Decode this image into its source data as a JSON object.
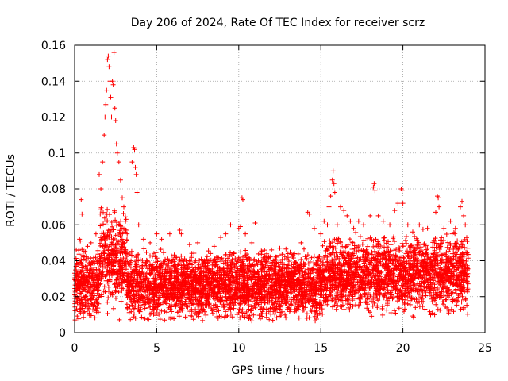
{
  "chart_data": {
    "type": "scatter",
    "title": "Day 206 of 2024, Rate Of TEC Index for receiver scrz",
    "xlabel": "GPS time / hours",
    "ylabel": "ROTI / TECUs",
    "xlim": [
      0,
      25
    ],
    "ylim": [
      0,
      0.16
    ],
    "xticks": [
      0,
      5,
      10,
      15,
      20,
      25
    ],
    "xtick_labels": [
      "0",
      "5",
      "10",
      "15",
      "20",
      "25"
    ],
    "yticks": [
      0,
      0.02,
      0.04,
      0.06,
      0.08,
      0.1,
      0.12,
      0.14,
      0.16
    ],
    "ytick_labels": [
      "0",
      "0.02",
      "0.04",
      "0.06",
      "0.08",
      "0.1",
      "0.12",
      "0.14",
      "0.16"
    ],
    "grid": true,
    "marker": "+",
    "color": "#ff0000",
    "x_extent_hours": [
      0,
      24
    ],
    "baseline_roti_range": [
      0.008,
      0.045
    ],
    "series": [
      {
        "name": "ROTI",
        "points": [
          [
            0.1,
            0.046
          ],
          [
            0.3,
            0.052
          ],
          [
            0.35,
            0.051
          ],
          [
            0.4,
            0.074
          ],
          [
            0.45,
            0.066
          ],
          [
            0.5,
            0.043
          ],
          [
            0.8,
            0.048
          ],
          [
            1.0,
            0.05
          ],
          [
            1.3,
            0.055
          ],
          [
            1.5,
            0.088
          ],
          [
            1.6,
            0.08
          ],
          [
            1.7,
            0.095
          ],
          [
            1.8,
            0.11
          ],
          [
            1.85,
            0.12
          ],
          [
            1.9,
            0.127
          ],
          [
            1.95,
            0.135
          ],
          [
            2.0,
            0.152
          ],
          [
            2.05,
            0.154
          ],
          [
            2.1,
            0.148
          ],
          [
            2.15,
            0.14
          ],
          [
            2.2,
            0.131
          ],
          [
            2.25,
            0.12
          ],
          [
            2.3,
            0.14
          ],
          [
            2.35,
            0.138
          ],
          [
            2.4,
            0.156
          ],
          [
            2.45,
            0.125
          ],
          [
            2.5,
            0.118
          ],
          [
            2.55,
            0.105
          ],
          [
            2.6,
            0.1
          ],
          [
            2.7,
            0.095
          ],
          [
            2.8,
            0.085
          ],
          [
            2.9,
            0.075
          ],
          [
            3.0,
            0.07
          ],
          [
            3.1,
            0.062
          ],
          [
            3.2,
            0.055
          ],
          [
            3.5,
            0.095
          ],
          [
            3.6,
            0.103
          ],
          [
            3.65,
            0.102
          ],
          [
            3.7,
            0.092
          ],
          [
            3.75,
            0.088
          ],
          [
            3.8,
            0.078
          ],
          [
            3.9,
            0.06
          ],
          [
            4.2,
            0.052
          ],
          [
            4.6,
            0.05
          ],
          [
            5.0,
            0.055
          ],
          [
            5.3,
            0.052
          ],
          [
            5.8,
            0.055
          ],
          [
            6.4,
            0.057
          ],
          [
            6.5,
            0.055
          ],
          [
            7.0,
            0.049
          ],
          [
            7.5,
            0.05
          ],
          [
            8.5,
            0.048
          ],
          [
            8.9,
            0.053
          ],
          [
            9.2,
            0.055
          ],
          [
            9.5,
            0.06
          ],
          [
            10.0,
            0.058
          ],
          [
            10.1,
            0.059
          ],
          [
            10.2,
            0.075
          ],
          [
            10.25,
            0.074
          ],
          [
            10.4,
            0.055
          ],
          [
            10.8,
            0.05
          ],
          [
            11.0,
            0.061
          ],
          [
            11.4,
            0.045
          ],
          [
            12.0,
            0.046
          ],
          [
            12.5,
            0.047
          ],
          [
            13.0,
            0.044
          ],
          [
            13.4,
            0.044
          ],
          [
            13.8,
            0.05
          ],
          [
            14.2,
            0.067
          ],
          [
            14.3,
            0.066
          ],
          [
            14.6,
            0.058
          ],
          [
            15.0,
            0.055
          ],
          [
            15.2,
            0.062
          ],
          [
            15.4,
            0.06
          ],
          [
            15.5,
            0.07
          ],
          [
            15.6,
            0.076
          ],
          [
            15.7,
            0.085
          ],
          [
            15.75,
            0.09
          ],
          [
            15.8,
            0.083
          ],
          [
            15.85,
            0.078
          ],
          [
            16.0,
            0.06
          ],
          [
            16.2,
            0.07
          ],
          [
            16.4,
            0.068
          ],
          [
            16.6,
            0.065
          ],
          [
            16.8,
            0.062
          ],
          [
            17.0,
            0.058
          ],
          [
            17.3,
            0.062
          ],
          [
            17.6,
            0.06
          ],
          [
            18.0,
            0.065
          ],
          [
            18.2,
            0.081
          ],
          [
            18.25,
            0.083
          ],
          [
            18.3,
            0.079
          ],
          [
            18.5,
            0.065
          ],
          [
            18.8,
            0.062
          ],
          [
            19.2,
            0.06
          ],
          [
            19.5,
            0.068
          ],
          [
            19.7,
            0.072
          ],
          [
            19.9,
            0.08
          ],
          [
            19.95,
            0.079
          ],
          [
            20.0,
            0.072
          ],
          [
            20.3,
            0.06
          ],
          [
            20.6,
            0.056
          ],
          [
            21.0,
            0.06
          ],
          [
            21.5,
            0.058
          ],
          [
            22.0,
            0.067
          ],
          [
            22.1,
            0.076
          ],
          [
            22.15,
            0.075
          ],
          [
            22.2,
            0.07
          ],
          [
            22.5,
            0.058
          ],
          [
            22.9,
            0.062
          ],
          [
            23.0,
            0.055
          ],
          [
            23.2,
            0.058
          ],
          [
            23.5,
            0.07
          ],
          [
            23.6,
            0.073
          ],
          [
            23.7,
            0.065
          ],
          [
            23.8,
            0.06
          ]
        ]
      }
    ]
  }
}
